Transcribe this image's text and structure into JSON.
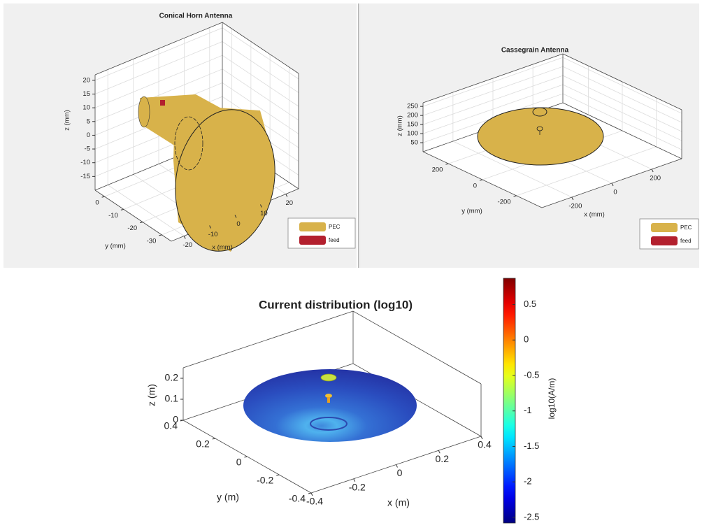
{
  "chart_data": [
    {
      "type": "geometry3d",
      "title": "Conical Horn Antenna",
      "xlabel": "x (mm)",
      "ylabel": "y (mm)",
      "zlabel": "z (mm)",
      "xlim": [
        -25,
        25
      ],
      "ylim": [
        -35,
        5
      ],
      "zlim": [
        -20,
        22
      ],
      "xticks": [
        -20,
        -10,
        0,
        10,
        20
      ],
      "yticks": [
        -30,
        -20,
        -10,
        0
      ],
      "zticks": [
        -15,
        -10,
        -5,
        0,
        5,
        10,
        15,
        20
      ],
      "grid": true,
      "series": [
        {
          "name": "PEC",
          "color": "#d8b24a"
        },
        {
          "name": "feed",
          "color": "#b3202e"
        }
      ]
    },
    {
      "type": "geometry3d",
      "title": "Cassegrain Antenna",
      "xlabel": "x (mm)",
      "ylabel": "y (mm)",
      "zlabel": "z (mm)",
      "xlim": [
        -350,
        350
      ],
      "ylim": [
        -350,
        350
      ],
      "zlim": [
        0,
        270
      ],
      "xticks": [
        -200,
        0,
        200
      ],
      "yticks": [
        -200,
        0,
        200
      ],
      "zticks": [
        50,
        100,
        150,
        200,
        250
      ],
      "grid": true,
      "series": [
        {
          "name": "PEC",
          "color": "#d8b24a"
        },
        {
          "name": "feed",
          "color": "#b3202e"
        }
      ]
    },
    {
      "type": "surface3d",
      "title": "Current distribution (log10)",
      "xlabel": "x (m)",
      "ylabel": "y (m)",
      "zlabel": "z (m)",
      "xlim": [
        -0.4,
        0.4
      ],
      "ylim": [
        -0.4,
        0.4
      ],
      "zlim": [
        0,
        0.25
      ],
      "xticks": [
        -0.4,
        -0.2,
        0,
        0.2,
        0.4
      ],
      "yticks": [
        -0.4,
        -0.2,
        0,
        0.2,
        0.4
      ],
      "zticks": [
        0,
        0.1,
        0.2
      ],
      "grid": false,
      "colorbar": {
        "label": "log10(A/m)",
        "clim": [
          -2.58,
          0.87
        ],
        "ticks": [
          -2.5,
          -2,
          -1.5,
          -1,
          -0.5,
          0,
          0.5
        ],
        "colormap": "jet"
      }
    }
  ]
}
